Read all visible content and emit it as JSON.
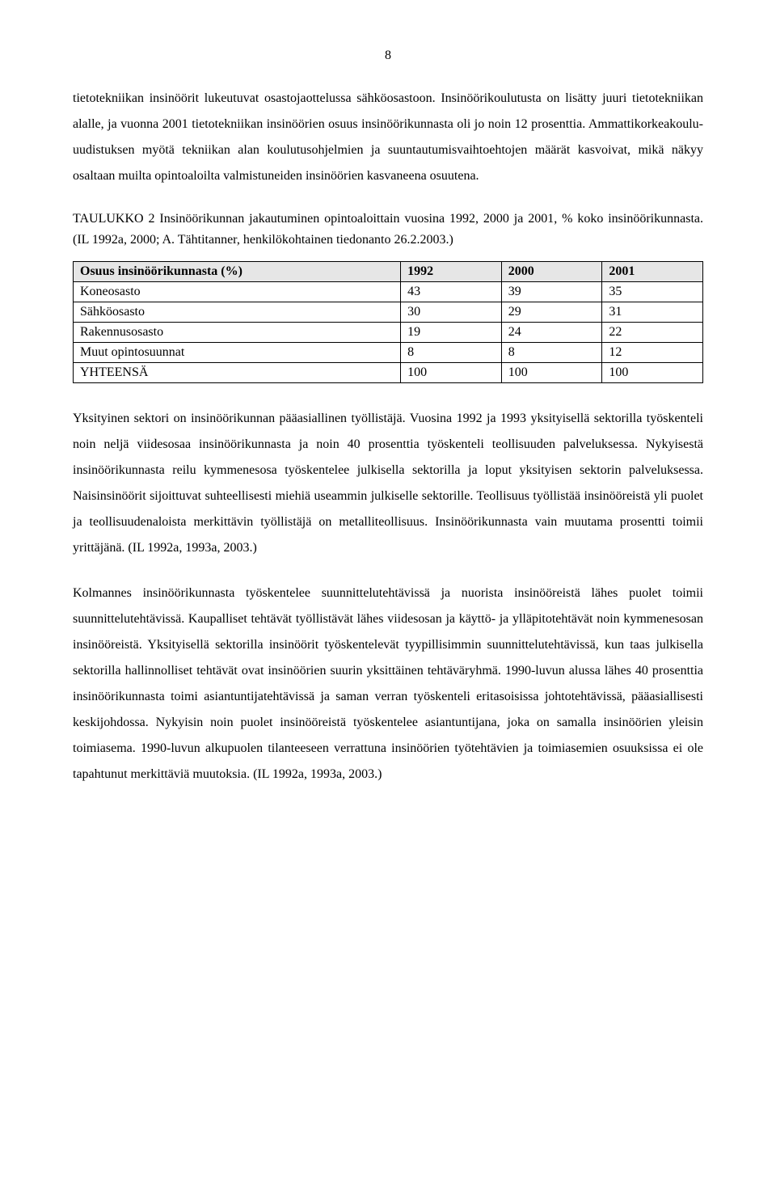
{
  "page_number": "8",
  "paragraphs": {
    "p1": "tietotekniikan insinöörit lukeutuvat osastojaottelussa sähköosastoon. Insinöörikoulutusta on lisätty juuri tietotekniikan alalle, ja vuonna 2001 tietotekniikan insinöörien osuus insinöörikunnasta oli jo noin 12 prosenttia. Ammattikorkeakoulu-uudistuksen myötä tekniikan alan koulutusohjelmien ja suuntautumisvaihtoehtojen määrät kasvoivat, mikä näkyy osaltaan muilta opintoaloilta valmistuneiden insinöörien kasvaneena osuutena.",
    "caption": "TAULUKKO 2 Insinöörikunnan jakautuminen opintoaloittain vuosina 1992, 2000 ja 2001, % koko insinöörikunnasta. (IL 1992a, 2000; A. Tähtitanner, henkilökohtainen tiedonanto 26.2.2003.)",
    "p2": "Yksityinen sektori on insinöörikunnan pääasiallinen työllistäjä. Vuosina 1992 ja 1993 yksityisellä sektorilla työskenteli noin neljä viidesosaa insinöörikunnasta ja noin 40 prosenttia työskenteli teollisuuden palveluksessa. Nykyisestä insinöörikunnasta reilu kymmenesosa työskentelee julkisella sektorilla ja loput yksityisen sektorin palveluksessa. Naisinsinöörit sijoittuvat suhteellisesti miehiä useammin julkiselle sektorille. Teollisuus työllistää insinööreistä yli puolet ja teollisuudenaloista merkittävin työllistäjä on metalliteollisuus. Insinöörikunnasta vain muutama prosentti toimii yrittäjänä. (IL 1992a, 1993a, 2003.)",
    "p3": "Kolmannes insinöörikunnasta työskentelee suunnittelutehtävissä ja nuorista insinööreistä lähes puolet toimii suunnittelutehtävissä. Kaupalliset tehtävät työllistävät lähes viidesosan ja käyttö- ja ylläpitotehtävät noin kymmenesosan insinööreistä. Yksityisellä sektorilla insinöörit työskentelevät tyypillisimmin suunnittelutehtävissä, kun taas julkisella sektorilla hallinnolliset tehtävät ovat insinöörien suurin yksittäinen tehtäväryhmä. 1990-luvun alussa lähes 40 prosenttia insinöörikunnasta toimi asiantuntijatehtävissä ja saman verran työskenteli eritasoisissa johtotehtävissä, pääasiallisesti keskijohdossa. Nykyisin noin puolet insinööreistä työskentelee asiantuntijana, joka on samalla insinöörien yleisin toimiasema. 1990-luvun alkupuolen tilanteeseen verrattuna insinöörien työtehtävien ja toimiasemien osuuksissa ei ole tapahtunut merkittäviä muutoksia. (IL 1992a, 1993a, 2003.)"
  },
  "table": {
    "header_bg": "#e6e6e6",
    "border_color": "#000000",
    "columns": [
      "Osuus insinöörikunnasta (%)",
      "1992",
      "2000",
      "2001"
    ],
    "rows": [
      [
        "Koneosasto",
        "43",
        "39",
        "35"
      ],
      [
        "Sähköosasto",
        "30",
        "29",
        "31"
      ],
      [
        "Rakennusosasto",
        "19",
        "24",
        "22"
      ],
      [
        "Muut opintosuunnat",
        "8",
        "8",
        "12"
      ],
      [
        "YHTEENSÄ",
        "100",
        "100",
        "100"
      ]
    ]
  }
}
